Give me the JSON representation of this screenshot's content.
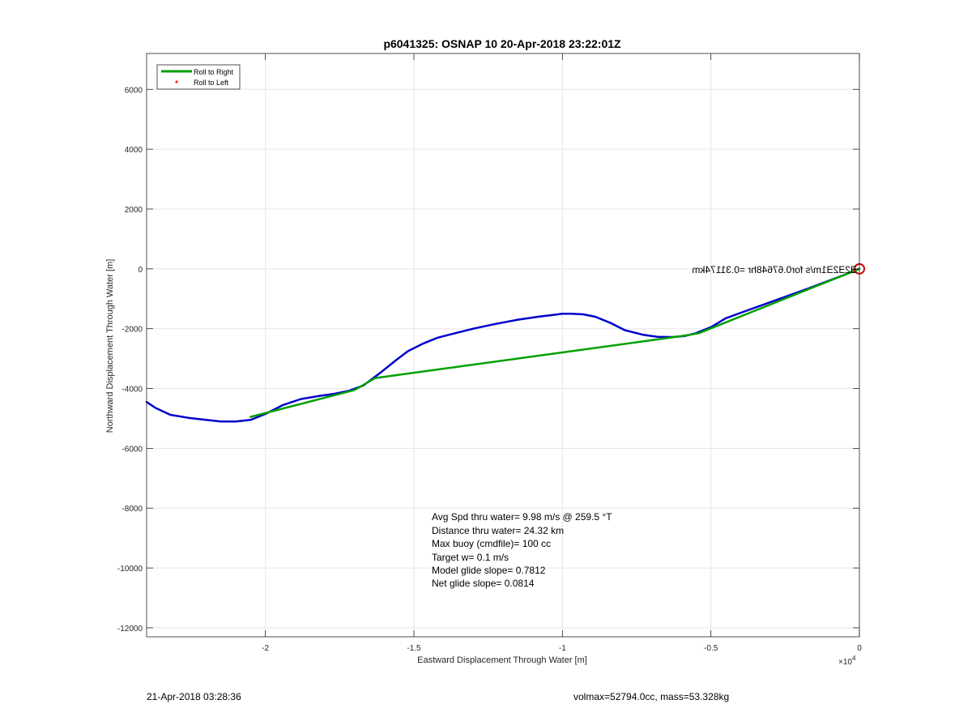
{
  "chart_data": {
    "type": "line",
    "title": "p6041325: OSNAP 10 20-Apr-2018 23:22:01Z",
    "xlabel": "Eastward Displacement Through Water [m]",
    "ylabel": "Northward Displacement Through Water [m]",
    "x_exponent_label": "×10",
    "x_exponent_power": "4",
    "x_scale_factor": 10000,
    "xlim": [
      -24000,
      0
    ],
    "ylim": [
      -12300,
      7200
    ],
    "x_ticks": [
      -20000,
      -15000,
      -10000,
      -5000,
      0
    ],
    "x_tick_labels": [
      "-2",
      "-1.5",
      "-1",
      "-0.5",
      "0"
    ],
    "y_ticks": [
      6000,
      4000,
      2000,
      0,
      -2000,
      -4000,
      -6000,
      -8000,
      -10000,
      -12000
    ],
    "y_tick_labels": [
      "6000",
      "4000",
      "2000",
      "0",
      "-2000",
      "-4000",
      "-6000",
      "-8000",
      "-10000",
      "-12000"
    ],
    "grid": true,
    "legend": {
      "position": "top-left",
      "entries": [
        {
          "label": "Roll to Right",
          "color": "#00a000",
          "marker": "line"
        },
        {
          "label": "Roll to Left",
          "color": "#ff0000",
          "marker": "dot"
        }
      ]
    },
    "series": [
      {
        "name": "Roll to Right",
        "color": "#00a000",
        "x": [
          0,
          -5400,
          -5700,
          -6000,
          -16300,
          -17000,
          -20500
        ],
        "y": [
          0,
          -2150,
          -2200,
          -2250,
          -3650,
          -4050,
          -4950
        ]
      },
      {
        "color": "#0000cc",
        "x": [
          0,
          -500,
          -1100,
          -1700,
          -2400,
          -3100,
          -3800,
          -4500,
          -5000,
          -5500,
          -5900,
          -6300,
          -6800,
          -7300,
          -7900,
          -8400,
          -8900,
          -9300,
          -9700,
          -10000,
          -10400,
          -10800,
          -11500,
          -12300,
          -13000,
          -13600,
          -14200,
          -14700,
          -15200,
          -15600,
          -16100,
          -16700,
          -17200,
          -17700,
          -18200,
          -18800,
          -19400,
          -20000,
          -20500,
          -21000,
          -21500,
          -22000,
          -22600,
          -23200,
          -23700,
          -24000
        ],
        "y": [
          0,
          -200,
          -420,
          -650,
          -900,
          -1150,
          -1400,
          -1650,
          -1950,
          -2150,
          -2250,
          -2280,
          -2270,
          -2200,
          -2050,
          -1800,
          -1600,
          -1520,
          -1500,
          -1500,
          -1550,
          -1600,
          -1700,
          -1850,
          -2000,
          -2150,
          -2300,
          -2500,
          -2750,
          -3050,
          -3450,
          -3900,
          -4080,
          -4180,
          -4250,
          -4350,
          -4550,
          -4850,
          -5050,
          -5100,
          -5100,
          -5050,
          -4980,
          -4880,
          -4650,
          -4450
        ]
      }
    ],
    "start_marker": {
      "x": 0,
      "y": 0,
      "color": "#cc0000"
    },
    "mirrored_annotation": "Ǝ2Ǝ2Ǝ1m/s for0.67648hr =0.3117​4km",
    "annotation_lines": [
      "Avg Spd thru water=  9.98 m/s @ 259.5 °T",
      "Distance thru water= 24.32 km",
      "Max buoy (cmdfile)= 100 cc",
      "Target w= 0.1 m/s",
      "Model glide slope= 0.7812",
      "Net glide slope= 0.0814"
    ],
    "colors": {
      "grid": "#e6e6e6",
      "axes": "#262626"
    }
  },
  "footer": {
    "timestamp": "21-Apr-2018 03:28:36",
    "vehicle_info": "volmax=52794.0cc, mass=53.328kg"
  }
}
